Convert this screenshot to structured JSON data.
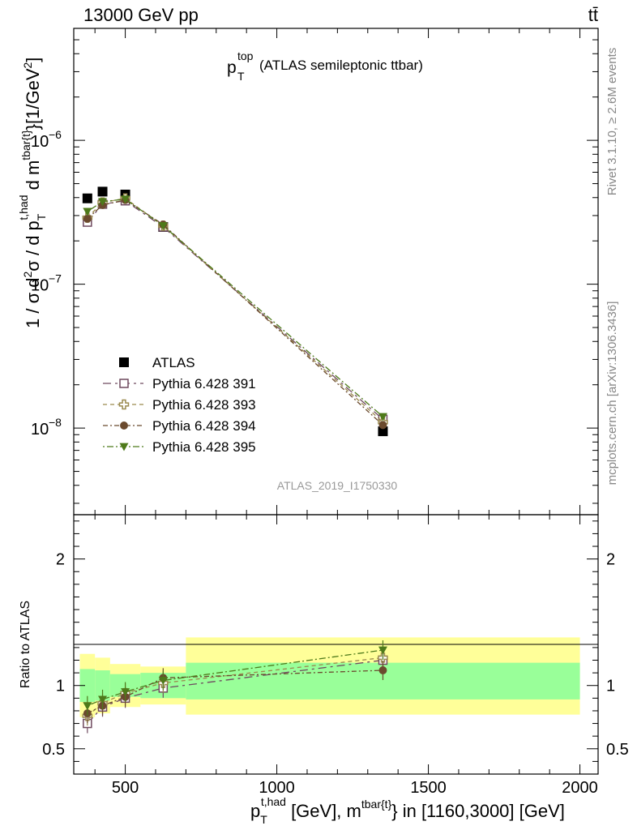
{
  "header": {
    "left": "13000 GeV pp",
    "right": "tt̄"
  },
  "side": {
    "rivet": "Rivet 3.1.10, ≥ 2.6M events",
    "mcplots": "mcplots.cern.ch [arXiv:1306.3436]"
  },
  "main_title": {
    "base": "p",
    "sup": "top",
    "sub": "T",
    "rest": "(ATLAS semileptonic ttbar)"
  },
  "watermark": "ATLAS_2019_I1750330",
  "ylabel_main": "1 / σ d²σ / d p_T^{t,had} d m^{tbar{t}}[1/GeV²]",
  "ylabel_ratio": "Ratio to ATLAS",
  "xlabel": "p_T^{t,had} [GeV], m^{tbar{t}} in [1160,3000] [GeV]",
  "colors": {
    "atlas": "#000000",
    "p391": "#6f4a5f",
    "p393": "#9a8a4e",
    "p394": "#6b4a2e",
    "p395": "#4e7a1a",
    "band_inner": "#99ff99",
    "band_outer": "#ffff99"
  },
  "chart_data": {
    "type": "scatter",
    "x_range": [
      330,
      2060
    ],
    "x_ticks": [
      500,
      1000,
      1500,
      2000
    ],
    "main": {
      "y_scale": "log",
      "y_range": [
        2.5e-09,
        6e-06
      ],
      "y_tick_labels": [
        {
          "value": 1e-06,
          "mant": "10",
          "exp": "−6"
        },
        {
          "value": 1e-07,
          "mant": "10",
          "exp": "−7"
        },
        {
          "value": 1e-08,
          "mant": "10",
          "exp": "−8"
        }
      ]
    },
    "ratio": {
      "y_range": [
        0.3,
        2.35
      ],
      "y_ticks": [
        0.5,
        1,
        2
      ],
      "y_tick_labels": [
        "0.5",
        "1",
        "2"
      ]
    },
    "bins": [
      {
        "x": 375,
        "lo": 350,
        "hi": 400
      },
      {
        "x": 425,
        "lo": 400,
        "hi": 450
      },
      {
        "x": 500,
        "lo": 450,
        "hi": 550
      },
      {
        "x": 625,
        "lo": 550,
        "hi": 700
      },
      {
        "x": 1350,
        "lo": 700,
        "hi": 2000
      }
    ],
    "bands": {
      "inner": [
        [
          0.87,
          1.13
        ],
        [
          0.88,
          1.12
        ],
        [
          0.91,
          1.09
        ],
        [
          0.9,
          1.1
        ],
        [
          0.89,
          1.18
        ]
      ],
      "outer": [
        [
          0.75,
          1.25
        ],
        [
          0.78,
          1.22
        ],
        [
          0.83,
          1.17
        ],
        [
          0.85,
          1.15
        ],
        [
          0.77,
          1.38
        ]
      ]
    },
    "series": [
      {
        "name": "ATLAS",
        "key": "atlas",
        "marker": "filled-square",
        "line": "none",
        "values": [
          3.95e-07,
          4.4e-07,
          4.2e-07,
          2.5e-07,
          9.5e-09
        ],
        "ratio": [
          1,
          1,
          1,
          1,
          1
        ]
      },
      {
        "name": "Pythia 6.428 391",
        "key": "p391",
        "marker": "open-square",
        "line": "10,5,3,5",
        "values": [
          2.7e-07,
          3.6e-07,
          3.8e-07,
          2.5e-07,
          1.15e-08
        ],
        "ratio": [
          0.7,
          0.83,
          0.9,
          0.98,
          1.2
        ]
      },
      {
        "name": "Pythia 6.428 393",
        "key": "p393",
        "marker": "open-cross",
        "line": "5,4",
        "values": [
          2.9e-07,
          3.7e-07,
          3.95e-07,
          2.55e-07,
          1.1e-08
        ],
        "ratio": [
          0.76,
          0.86,
          0.94,
          1.02,
          1.22
        ]
      },
      {
        "name": "Pythia 6.428 394",
        "key": "p394",
        "marker": "filled-circle",
        "line": "6,3,2,3",
        "values": [
          2.85e-07,
          3.55e-07,
          3.85e-07,
          2.6e-07,
          1.05e-08
        ],
        "ratio": [
          0.78,
          0.84,
          0.91,
          1.06,
          1.12
        ]
      },
      {
        "name": "Pythia 6.428 395",
        "key": "p395",
        "marker": "filled-triangle-down",
        "line": "2,3,8,3",
        "values": [
          3.2e-07,
          3.75e-07,
          3.9e-07,
          2.55e-07,
          1.2e-08
        ],
        "ratio": [
          0.84,
          0.89,
          0.95,
          1.04,
          1.28
        ]
      }
    ]
  }
}
